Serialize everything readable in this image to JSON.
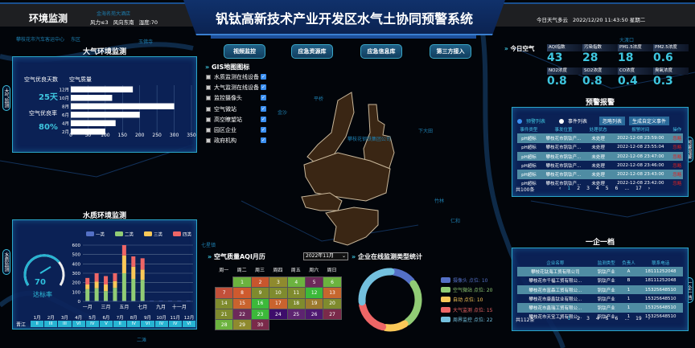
{
  "header": {
    "left_title": "环境监测",
    "wind_force": "风力≤3",
    "wind_dir": "风向东南",
    "humidity": "湿度:70",
    "title": "钒钛高新技术产业开发区水气土协同预警系统",
    "weather": "今日天气多云",
    "datetime": "2022/12/20 11:43:50 星期二"
  },
  "map_labels": [
    "攀枝花市汽车客运中心",
    "东区",
    "金海名苑大酒店",
    "玉佛寺",
    "大渡口",
    "竹林",
    "金沙",
    "平桥",
    "下大田",
    "攀枝花钢铁集团公司",
    "仁和",
    "七星镇",
    "二滩"
  ],
  "side_tabs": {
    "air": "大气监测",
    "water": "水质监测",
    "alarm": "预警报警",
    "enterprise": "一企一档"
  },
  "air_panel": {
    "title": "大气环境监测",
    "good_days_label": "空气优良天数",
    "good_days": "25天",
    "good_rate_label": "空气优良率",
    "good_rate": "80%"
  },
  "chart_data": [
    {
      "type": "bar",
      "orientation": "horizontal",
      "title": "空气质量",
      "categories": [
        "12月",
        "10月",
        "8月",
        "6月",
        "4月",
        "2月"
      ],
      "values": [
        180,
        120,
        300,
        200,
        130,
        100
      ],
      "xlim": [
        0,
        350
      ],
      "xticks": [
        "0",
        "50",
        "100",
        "150",
        "200",
        "250",
        "300",
        "350"
      ],
      "grid": true
    },
    {
      "type": "bar",
      "stacked": true,
      "categories": [
        "一月",
        "二月",
        "三月",
        "四月",
        "五月",
        "六月",
        "七月",
        "八月",
        "九月",
        "十月",
        "十一月",
        "十二月"
      ],
      "tick_labels": [
        "一月",
        "三月",
        "五月",
        "七月",
        "九月",
        "十一月"
      ],
      "ylim": [
        0,
        600
      ],
      "yticks": [
        "0",
        "100",
        "200",
        "300",
        "400",
        "500",
        "600"
      ],
      "legend": "top",
      "grid": true,
      "series": [
        {
          "name": "一类",
          "color": "#5470c6",
          "values": [
            5,
            5,
            5,
            5,
            5,
            5,
            5,
            5,
            5,
            5,
            5,
            5
          ]
        },
        {
          "name": "二类",
          "color": "#91cc75",
          "values": [
            125,
            135,
            105,
            140,
            295,
            235,
            225,
            0,
            0,
            0,
            0,
            0
          ]
        },
        {
          "name": "三类",
          "color": "#fac858",
          "values": [
            50,
            70,
            70,
            70,
            190,
            130,
            110,
            0,
            0,
            0,
            0,
            0
          ]
        },
        {
          "name": "四类",
          "color": "#ee6666",
          "values": [
            70,
            90,
            90,
            85,
            110,
            110,
            120,
            0,
            0,
            0,
            0,
            0
          ]
        }
      ]
    },
    {
      "type": "pie",
      "donut": true,
      "title": "企业在线监测类型统计",
      "legend": "right",
      "labels": [
        "摄像头 点位: 10",
        "空气微站 点位: 20",
        "自动 点位: 10",
        "大气监测 点位: 15",
        "周界监控 点位: 22"
      ],
      "values": [
        10,
        20,
        10,
        15,
        22
      ],
      "colors": [
        "#5470c6",
        "#91cc75",
        "#fac858",
        "#ee6666",
        "#73c0de"
      ]
    }
  ],
  "water_panel": {
    "title": "水质环境监测",
    "gauge_value": "70",
    "gauge_pct": 70,
    "gauge_label": "达标率",
    "river": "晋江",
    "months": [
      "1月",
      "2月",
      "3月",
      "4月",
      "5月",
      "6月",
      "7月",
      "8月",
      "9月",
      "10月",
      "11月",
      "12月"
    ],
    "grades": [
      "II",
      "III",
      "III",
      "VI",
      "IV",
      "V",
      "II",
      "IV",
      "VI",
      "IV",
      "IV",
      "VI"
    ]
  },
  "top_buttons": [
    "视频监控",
    "应急资源库",
    "应急信息库",
    "第三方接入"
  ],
  "gis": {
    "title": "GIS地图图标",
    "layers": [
      "水质监测在线设备",
      "大气监测在线设备",
      "监控摄像头",
      "空气微站",
      "高空瞭望站",
      "园区企业",
      "政府机构"
    ],
    "checked": true
  },
  "today_air": {
    "title": "今日空气",
    "tiles": [
      {
        "label": "AQI指数",
        "value": "43"
      },
      {
        "label": "污染指数",
        "value": "28"
      },
      {
        "label": "PM1.5浓度",
        "value": "18"
      },
      {
        "label": "PM2.5浓度",
        "value": "0.6"
      },
      {
        "label": "NO2浓度",
        "value": "0.8"
      },
      {
        "label": "SO2浓度",
        "value": "0.8"
      },
      {
        "label": "CO浓度",
        "value": "0.4"
      },
      {
        "label": "臭氧浓度",
        "value": "0.3"
      }
    ]
  },
  "alarm": {
    "title": "预警报警",
    "radio_alarm": "预警列表",
    "radio_event": "事件列表",
    "btn_ignore": "忽略列表",
    "btn_create": "生成自定义事件",
    "headers": [
      "事件类型",
      "事发位置",
      "处理状态",
      "报警时间",
      "操作"
    ],
    "rows": [
      [
        "pH超标",
        "攀枝花市钒钛产...",
        "未处理",
        "2022-12-08 23:59:00",
        "忽略"
      ],
      [
        "pH超标",
        "攀枝花市钒钛产...",
        "未处理",
        "2022-12-08 23:55:04",
        "忽略"
      ],
      [
        "pH超标",
        "攀枝花市钒钛产...",
        "未处理",
        "2022-12-08 23:47:00",
        "忽略"
      ],
      [
        "pH超标",
        "攀枝花市钒钛产...",
        "未处理",
        "2022-12-08 23:46:00",
        "忽略"
      ],
      [
        "pH超标",
        "攀枝花市钒钛产...",
        "未处理",
        "2022-12-08 23:43:00",
        "忽略"
      ],
      [
        "pH超标",
        "攀枝花市钒钛产...",
        "未处理",
        "2022-12-08 23:42:00",
        "忽略"
      ]
    ],
    "total": "共100条",
    "pages": [
      "1",
      "2",
      "3",
      "4",
      "5",
      "6",
      "...",
      "17"
    ],
    "current": "1"
  },
  "enterprise": {
    "title": "一企一档",
    "headers": [
      "企业名称",
      "监测类型",
      "负责人",
      "联系电话"
    ],
    "rows": [
      [
        "攀枝花钛海工贸有限公司",
        "钒钛产业",
        "A",
        "18111252048"
      ],
      [
        "攀枝花市千福工贸有限公...",
        "钒钛产业",
        "B",
        "18111252048"
      ],
      [
        "攀枝花市富森工贸有限公...",
        "钒钛产业",
        "1",
        "15325648510"
      ],
      [
        "攀枝花市康鑫钛业有限公...",
        "钒钛产业",
        "1",
        "15325648510"
      ],
      [
        "攀枝花市鑫瑞工贸有限公...",
        "钒钛产业",
        "1",
        "15325648510"
      ],
      [
        "攀枝花市天宝工贸有限公...",
        "钒钛产业",
        "1",
        "15325648510"
      ]
    ],
    "total": "共112条",
    "pages": [
      "1",
      "2",
      "3",
      "4",
      "5",
      "6",
      "...",
      "19"
    ],
    "current": "1"
  },
  "aqi_calendar": {
    "title": "空气质量AQI月历",
    "month_select": "2022年11月",
    "weekdays": [
      "周一",
      "周二",
      "周三",
      "周四",
      "周五",
      "周六",
      "周日"
    ],
    "start_offset": 1,
    "days": [
      {
        "d": "1",
        "c": "#6cb33f"
      },
      {
        "d": "2",
        "c": "#c9562d"
      },
      {
        "d": "3",
        "c": "#8f8a2e"
      },
      {
        "d": "4",
        "c": "#6cb33f"
      },
      {
        "d": "5",
        "c": "#6d2a5a"
      },
      {
        "d": "6",
        "c": "#6cb33f"
      },
      {
        "d": "7",
        "c": "#c2503a"
      },
      {
        "d": "8",
        "c": "#cf5a2e"
      },
      {
        "d": "9",
        "c": "#7f8b2e"
      },
      {
        "d": "10",
        "c": "#7f8b2e"
      },
      {
        "d": "11",
        "c": "#7f8b2e"
      },
      {
        "d": "12",
        "c": "#3cb93a"
      },
      {
        "d": "13",
        "c": "#c7672e"
      },
      {
        "d": "14",
        "c": "#7f8b2e"
      },
      {
        "d": "15",
        "c": "#c9632e"
      },
      {
        "d": "16",
        "c": "#3cb93a"
      },
      {
        "d": "17",
        "c": "#c9632e"
      },
      {
        "d": "18",
        "c": "#7f8b2e"
      },
      {
        "d": "19",
        "c": "#9c7a2e"
      },
      {
        "d": "20",
        "c": "#7f8b2e"
      },
      {
        "d": "21",
        "c": "#7f8b2e"
      },
      {
        "d": "22",
        "c": "#6d2a5a"
      },
      {
        "d": "23",
        "c": "#3cb93a"
      },
      {
        "d": "24",
        "c": "#3d0d6b"
      },
      {
        "d": "25",
        "c": "#5d2470"
      },
      {
        "d": "26",
        "c": "#4d1870"
      },
      {
        "d": "27",
        "c": "#7a2a4a"
      },
      {
        "d": "28",
        "c": "#6cb33f"
      },
      {
        "d": "29",
        "c": "#8f8a2e"
      },
      {
        "d": "30",
        "c": "#7a2a4a"
      }
    ]
  }
}
